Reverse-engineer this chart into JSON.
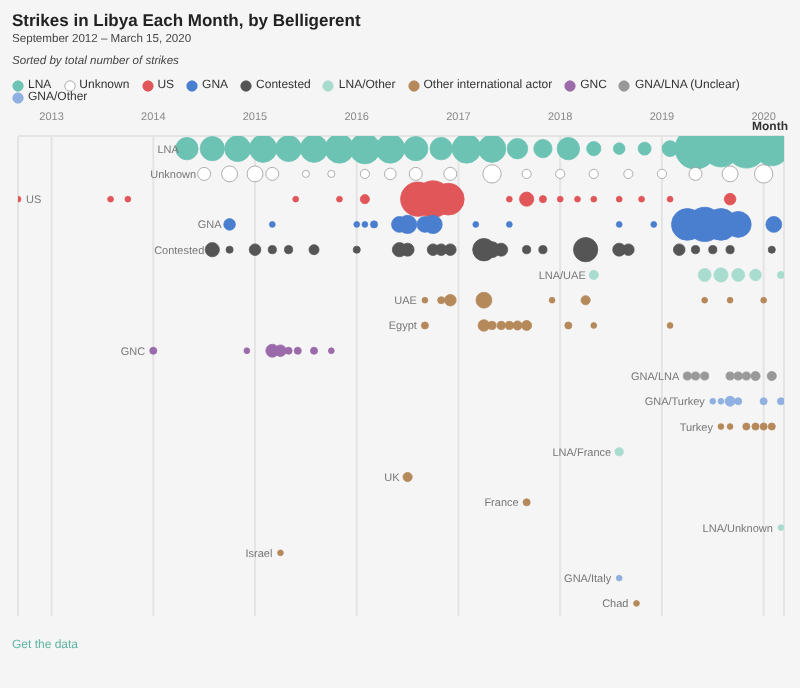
{
  "chart_data": {
    "type": "bubble",
    "title": "Strikes in Libya Each Month, by Belligerent",
    "subtitle": "September 2012 – March 15, 2020",
    "annotations": [
      "Sorted by total number of strikes",
      "Get the data"
    ],
    "xlabel": "Month",
    "orientation": "horizontal",
    "legend": "top",
    "grid": "x",
    "categories": [
      "LNA",
      "Unknown",
      "US",
      "GNA",
      "Contested",
      "LNA/UAE",
      "UAE",
      "Egypt",
      "GNC",
      "GNA/LNA",
      "GNA/Turkey",
      "Turkey",
      "LNA/France",
      "UK",
      "France",
      "LNA/Unknown",
      "Israel",
      "GNA/Italy",
      "Chad"
    ],
    "xlim": [
      2012.67,
      2020.2
    ],
    "xticks": [
      2013,
      2014,
      2015,
      2016,
      2017,
      2018,
      2019,
      2020
    ],
    "series": [
      {
        "name": "LNA",
        "color": "#6cc3b4",
        "x": [
          "LNA",
          "LNA",
          "LNA",
          "LNA",
          "LNA",
          "LNA",
          "LNA",
          "LNA",
          "LNA",
          "LNA",
          "LNA",
          "LNA",
          "LNA",
          "LNA",
          "LNA",
          "LNA",
          "LNA",
          "LNA",
          "LNA",
          "LNA",
          "LNA",
          "LNA",
          "LNA",
          "LNA"
        ],
        "values": [
          2014.33,
          2014.58,
          2014.83,
          2015.08,
          2015.33,
          2015.58,
          2015.83,
          2016.08,
          2016.33,
          2016.58,
          2016.83,
          2017.08,
          2017.33,
          2017.58,
          2017.83,
          2018.08,
          2018.33,
          2018.58,
          2018.83,
          2019.08,
          2019.33,
          2019.58,
          2019.83,
          2020.08
        ],
        "sizes": [
          0.3,
          0.35,
          0.4,
          0.45,
          0.4,
          0.45,
          0.5,
          0.55,
          0.5,
          0.35,
          0.3,
          0.5,
          0.45,
          0.25,
          0.2,
          0.3,
          0.12,
          0.08,
          0.1,
          0.15,
          1,
          0.8,
          0.9,
          0.7
        ]
      },
      {
        "name": "Unknown",
        "color": "#ffffff",
        "x": [
          "Unknown",
          "Unknown",
          "Unknown",
          "Unknown",
          "Unknown",
          "Unknown",
          "Unknown",
          "Unknown",
          "Unknown",
          "Unknown",
          "Unknown",
          "Unknown",
          "Unknown",
          "Unknown",
          "Unknown",
          "Unknown",
          "Unknown",
          "Unknown",
          "Unknown"
        ],
        "values": [
          2014.5,
          2014.75,
          2015.0,
          2015.17,
          2015.5,
          2015.75,
          2016.08,
          2016.33,
          2016.58,
          2016.92,
          2017.33,
          2017.67,
          2018.0,
          2018.33,
          2018.67,
          2019.0,
          2019.33,
          2019.67,
          2020.0
        ],
        "sizes": [
          0.1,
          0.15,
          0.15,
          0.1,
          0.03,
          0.03,
          0.05,
          0.08,
          0.1,
          0.1,
          0.2,
          0.05,
          0.05,
          0.05,
          0.05,
          0.05,
          0.1,
          0.15,
          0.2
        ]
      },
      {
        "name": "US",
        "color": "#e15759",
        "x": [
          "US",
          "US",
          "US",
          "US",
          "US",
          "US",
          "US",
          "US",
          "US",
          "US",
          "US",
          "US",
          "US",
          "US",
          "US",
          "US",
          "US",
          "US",
          "US"
        ],
        "values": [
          2012.67,
          2013.58,
          2013.75,
          2015.4,
          2015.83,
          2016.08,
          2016.6,
          2016.75,
          2016.9,
          2017.5,
          2017.67,
          2017.83,
          2018.0,
          2018.17,
          2018.33,
          2018.58,
          2018.8,
          2019.08,
          2019.67
        ],
        "sizes": [
          0.02,
          0.02,
          0.02,
          0.02,
          0.02,
          0.05,
          0.7,
          0.8,
          0.6,
          0.02,
          0.12,
          0.03,
          0.02,
          0.02,
          0.02,
          0.02,
          0.02,
          0.02,
          0.08
        ]
      },
      {
        "name": "GNA",
        "color": "#4a7fd0",
        "x": [
          "GNA",
          "GNA",
          "GNA",
          "GNA",
          "GNA",
          "GNA",
          "GNA",
          "GNA",
          "GNA",
          "GNA",
          "GNA",
          "GNA",
          "GNA",
          "GNA",
          "GNA",
          "GNA",
          "GNA",
          "GNA"
        ],
        "values": [
          2014.75,
          2015.17,
          2016.0,
          2016.08,
          2016.17,
          2016.42,
          2016.5,
          2016.67,
          2016.75,
          2017.17,
          2017.5,
          2018.58,
          2018.92,
          2019.25,
          2019.42,
          2019.58,
          2019.75,
          2020.1
        ],
        "sizes": [
          0.08,
          0.02,
          0.02,
          0.02,
          0.03,
          0.15,
          0.2,
          0.15,
          0.2,
          0.02,
          0.02,
          0.02,
          0.02,
          0.6,
          0.7,
          0.6,
          0.4,
          0.15
        ]
      },
      {
        "name": "Contested",
        "color": "#555555",
        "x": [
          "Contested",
          "Contested",
          "Contested",
          "Contested",
          "Contested",
          "Contested",
          "Contested",
          "Contested",
          "Contested",
          "Contested",
          "Contested",
          "Contested",
          "Contested",
          "Contested",
          "Contested",
          "Contested",
          "Contested",
          "Contested",
          "Contested",
          "Contested",
          "Contested",
          "Contested",
          "Contested",
          "Contested",
          "Contested"
        ],
        "values": [
          2014.58,
          2014.75,
          2015.0,
          2015.17,
          2015.33,
          2015.58,
          2016.0,
          2016.42,
          2016.5,
          2016.75,
          2016.83,
          2016.92,
          2017.25,
          2017.33,
          2017.42,
          2017.67,
          2017.83,
          2018.25,
          2018.58,
          2018.67,
          2019.17,
          2019.33,
          2019.5,
          2019.67,
          2020.08
        ],
        "sizes": [
          0.12,
          0.03,
          0.08,
          0.04,
          0.04,
          0.06,
          0.03,
          0.12,
          0.1,
          0.08,
          0.08,
          0.08,
          0.3,
          0.15,
          0.1,
          0.04,
          0.04,
          0.35,
          0.1,
          0.08,
          0.08,
          0.04,
          0.04,
          0.04,
          0.03
        ]
      },
      {
        "name": "LNA/Other",
        "color": "#a8dccf",
        "x": [
          "LNA/UAE",
          "LNA/UAE",
          "LNA/UAE",
          "LNA/UAE",
          "LNA/UAE",
          "LNA/UAE",
          "LNA/France",
          "LNA/Unknown"
        ],
        "values": [
          2018.33,
          2019.42,
          2019.58,
          2019.75,
          2019.92,
          2020.17,
          2018.58,
          2020.17
        ],
        "sizes": [
          0.05,
          0.1,
          0.12,
          0.1,
          0.08,
          0.03,
          0.04,
          0.02
        ]
      },
      {
        "name": "Other international actor",
        "color": "#b5895a",
        "x": [
          "UAE",
          "UAE",
          "UAE",
          "UAE",
          "UAE",
          "UAE",
          "UAE",
          "UAE",
          "UAE",
          "Egypt",
          "Egypt",
          "Egypt",
          "Egypt",
          "Egypt",
          "Egypt",
          "Egypt",
          "Egypt",
          "Egypt",
          "Egypt",
          "Turkey",
          "Turkey",
          "Turkey",
          "Turkey",
          "Turkey",
          "Turkey",
          "UK",
          "France",
          "Israel",
          "Chad"
        ],
        "values": [
          2016.67,
          2016.83,
          2016.92,
          2017.25,
          2017.92,
          2018.25,
          2019.42,
          2019.67,
          2020.0,
          2016.67,
          2017.25,
          2017.33,
          2017.42,
          2017.5,
          2017.58,
          2017.67,
          2018.08,
          2018.33,
          2019.08,
          2019.58,
          2019.67,
          2019.83,
          2019.92,
          2020.0,
          2020.08,
          2016.5,
          2017.67,
          2015.25,
          2018.75
        ],
        "sizes": [
          0.02,
          0.03,
          0.08,
          0.15,
          0.02,
          0.05,
          0.02,
          0.02,
          0.02,
          0.03,
          0.08,
          0.04,
          0.04,
          0.04,
          0.05,
          0.06,
          0.03,
          0.02,
          0.02,
          0.02,
          0.02,
          0.03,
          0.03,
          0.03,
          0.03,
          0.05,
          0.03,
          0.02,
          0.02
        ]
      },
      {
        "name": "GNC",
        "color": "#9a6aaa",
        "x": [
          "GNC",
          "GNC",
          "GNC",
          "GNC",
          "GNC",
          "GNC",
          "GNC",
          "GNC"
        ],
        "values": [
          2014.0,
          2014.92,
          2015.17,
          2015.25,
          2015.33,
          2015.42,
          2015.58,
          2015.75
        ],
        "sizes": [
          0.03,
          0.02,
          0.1,
          0.08,
          0.03,
          0.03,
          0.03,
          0.02
        ]
      },
      {
        "name": "GNA/LNA (Unclear)",
        "color": "#999999",
        "x": [
          "GNA/LNA",
          "GNA/LNA",
          "GNA/LNA",
          "GNA/LNA",
          "GNA/LNA",
          "GNA/LNA",
          "GNA/LNA",
          "GNA/LNA"
        ],
        "values": [
          2019.25,
          2019.33,
          2019.42,
          2019.67,
          2019.75,
          2019.83,
          2019.92,
          2020.08
        ],
        "sizes": [
          0.04,
          0.04,
          0.04,
          0.04,
          0.04,
          0.04,
          0.05,
          0.05
        ]
      },
      {
        "name": "GNA/Other",
        "color": "#8fb0e0",
        "x": [
          "GNA/Turkey",
          "GNA/Turkey",
          "GNA/Turkey",
          "GNA/Turkey",
          "GNA/Turkey",
          "GNA/Turkey",
          "GNA/Italy"
        ],
        "values": [
          2019.5,
          2019.58,
          2019.67,
          2019.75,
          2020.0,
          2020.17,
          2018.58
        ],
        "sizes": [
          0.02,
          0.02,
          0.06,
          0.03,
          0.03,
          0.03,
          0.02
        ]
      }
    ]
  }
}
